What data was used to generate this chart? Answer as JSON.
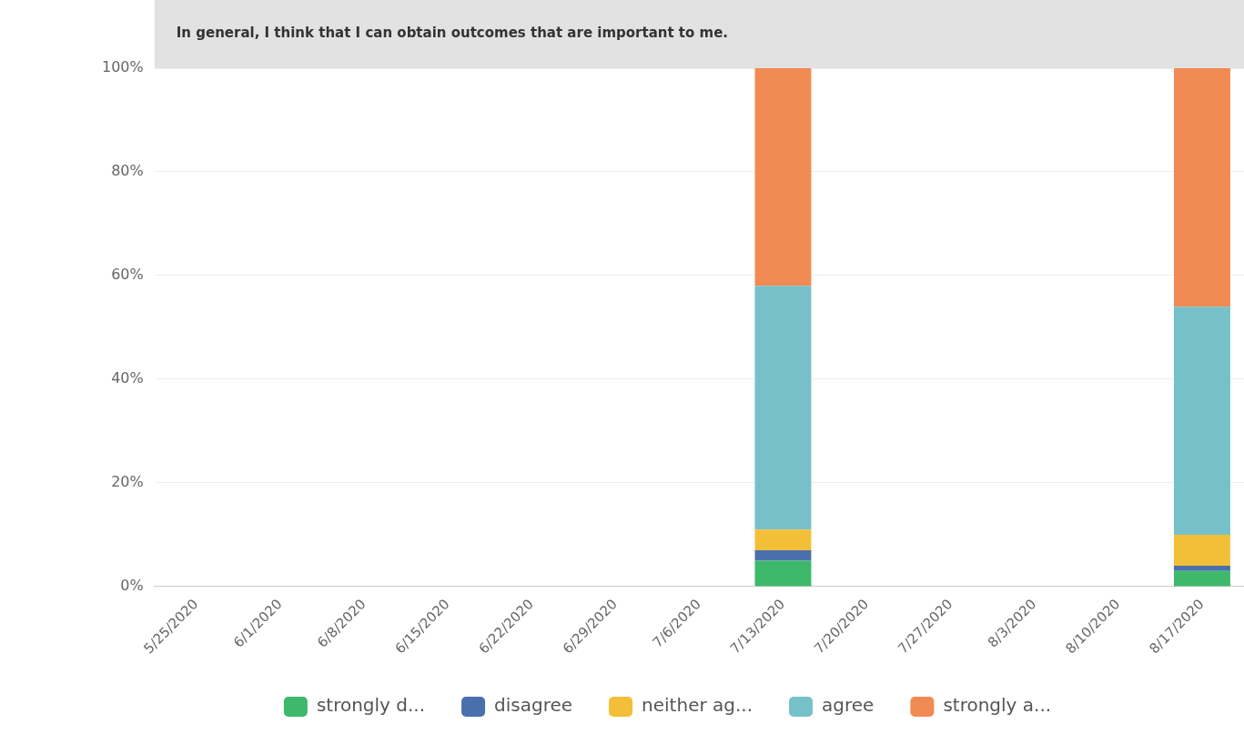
{
  "chart_data": {
    "type": "bar",
    "stacked": true,
    "title": "In general, I think that I can obtain outcomes that are important to me.",
    "categories": [
      "5/25/2020",
      "6/1/2020",
      "6/8/2020",
      "6/15/2020",
      "6/22/2020",
      "6/29/2020",
      "7/6/2020",
      "7/13/2020",
      "7/20/2020",
      "7/27/2020",
      "8/3/2020",
      "8/10/2020",
      "8/17/2020"
    ],
    "series": [
      {
        "name": "strongly d...",
        "color": "#3eb86b",
        "values": [
          0,
          0,
          0,
          0,
          0,
          0,
          0,
          5,
          0,
          0,
          0,
          0,
          3
        ]
      },
      {
        "name": "disagree",
        "color": "#4a6fad",
        "values": [
          0,
          0,
          0,
          0,
          0,
          0,
          0,
          2,
          0,
          0,
          0,
          0,
          1
        ]
      },
      {
        "name": "neither ag...",
        "color": "#f4bf38",
        "values": [
          0,
          0,
          0,
          0,
          0,
          0,
          0,
          4,
          0,
          0,
          0,
          0,
          6
        ]
      },
      {
        "name": "agree",
        "color": "#76c1c9",
        "values": [
          0,
          0,
          0,
          0,
          0,
          0,
          0,
          47,
          0,
          0,
          0,
          0,
          44
        ]
      },
      {
        "name": "strongly a...",
        "color": "#f28a53",
        "values": [
          0,
          0,
          0,
          0,
          0,
          0,
          0,
          42,
          0,
          0,
          0,
          0,
          46
        ]
      }
    ],
    "ylim": [
      0,
      100
    ],
    "yticks": [
      {
        "value": 0,
        "label": "0%"
      },
      {
        "value": 20,
        "label": "20%"
      },
      {
        "value": 40,
        "label": "40%"
      },
      {
        "value": 60,
        "label": "60%"
      },
      {
        "value": 80,
        "label": "80%"
      },
      {
        "value": 100,
        "label": "100%"
      }
    ],
    "grid": "y",
    "legend": "bottom"
  }
}
